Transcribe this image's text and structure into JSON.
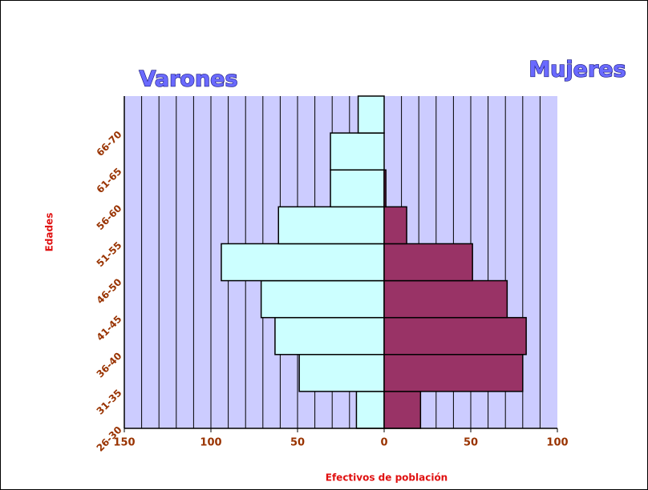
{
  "chart_data": {
    "type": "pyramid",
    "x_label": "Efectivos de población",
    "y_label": "Edades",
    "categories": [
      "26-30",
      "31-35",
      "36-40",
      "41-45",
      "46-50",
      "51-55",
      "56-60",
      "61-65",
      "66-70"
    ],
    "series": [
      {
        "name": "Varones",
        "color": "#ccffff",
        "values": [
          -16,
          -49,
          -63,
          -71,
          -94,
          -61,
          -31,
          -31,
          -15
        ]
      },
      {
        "name": "Mujeres",
        "color": "#993366",
        "values": [
          21,
          80,
          82,
          71,
          51,
          13,
          1,
          0,
          0
        ]
      }
    ],
    "xlim": [
      -150,
      100
    ],
    "xticks": [
      {
        "value": -150,
        "label": "150"
      },
      {
        "value": -100,
        "label": "100"
      },
      {
        "value": -50,
        "label": "50"
      },
      0,
      50,
      100
    ],
    "xgrid": [
      -140,
      -130,
      -120,
      -110,
      -100,
      -90,
      -80,
      -70,
      -60,
      -50,
      -40,
      -30,
      -20,
      -10,
      0,
      10,
      20,
      30,
      40,
      50,
      60,
      70,
      80,
      90
    ],
    "plot_background": "#ccccff"
  }
}
